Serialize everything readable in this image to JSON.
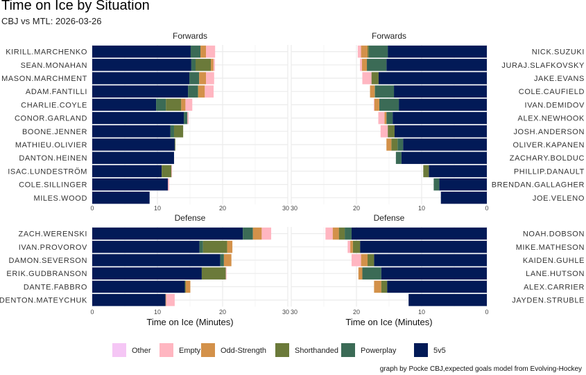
{
  "title": "Time on Ice by Situation",
  "subtitle": "CBJ vs MTL: 2026-03-26",
  "caption": "graph by Pocke CBJ,expected goals model from Evolving-Hockey",
  "chart_data": {
    "type": "bar",
    "orientation": "horizontal-stacked",
    "xlabel": "Time on Ice (Minutes)",
    "xlim": [
      0,
      30
    ],
    "xticks": [
      "0",
      "10",
      "20",
      "30"
    ],
    "series": [
      "5v5",
      "Powerplay",
      "Shorthanded",
      "Odd-Strength",
      "Empty Net",
      "Other"
    ],
    "colors": {
      "5v5": "#021a57",
      "Powerplay": "#3b6b56",
      "Shorthanded": "#6b7a3a",
      "Odd-Strength": "#d3914a",
      "Empty Net": "#ffb6c1",
      "Other": "#f5c6f5"
    },
    "legend": {
      "position": "bottom",
      "order": [
        "Other",
        "Empty Net",
        "Odd-Strength",
        "Shorthanded",
        "Powerplay",
        "5v5"
      ]
    },
    "panels": [
      {
        "title": "Forwards",
        "team": "CBJ",
        "direction": "left-to-right",
        "players": [
          {
            "name": "KIRILL.MARCHENKO",
            "values": [
              15.1,
              1.5,
              0,
              0.85,
              1.4,
              0
            ]
          },
          {
            "name": "SEAN.MONAHAN",
            "values": [
              15.2,
              0.65,
              2.35,
              0.4,
              0.2,
              0
            ]
          },
          {
            "name": "MASON.MARCHMENT",
            "values": [
              14.9,
              1.5,
              0,
              1.05,
              1.25,
              0
            ]
          },
          {
            "name": "ADAM.FANTILLI",
            "values": [
              14.7,
              1.5,
              0.07,
              1.0,
              1.35,
              0
            ]
          },
          {
            "name": "CHARLIE.COYLE",
            "values": [
              9.8,
              1.5,
              2.35,
              0.65,
              1.05,
              0
            ]
          },
          {
            "name": "CONOR.GARLAND",
            "values": [
              14.05,
              0.55,
              0,
              0,
              0.2,
              0
            ]
          },
          {
            "name": "BOONE.JENNER",
            "values": [
              12.0,
              0.55,
              1.4,
              0,
              0,
              0
            ]
          },
          {
            "name": "MATHIEU.OLIVIER",
            "values": [
              12.65,
              0,
              0.1,
              0,
              0,
              0
            ]
          },
          {
            "name": "DANTON.HEINEN",
            "values": [
              12.55,
              0,
              0,
              0,
              0,
              0
            ]
          },
          {
            "name": "ISAC.LUNDESTRÖM",
            "values": [
              10.65,
              0,
              1.5,
              0,
              0.1,
              0
            ]
          },
          {
            "name": "COLE.SILLINGER",
            "values": [
              11.6,
              0,
              0,
              0,
              0.2,
              0
            ]
          },
          {
            "name": "MILES.WOOD",
            "values": [
              8.8,
              0,
              0,
              0,
              0,
              0
            ]
          }
        ]
      },
      {
        "title": "Forwards",
        "team": "MTL",
        "direction": "right-to-left",
        "players": [
          {
            "name": "NICK.SUZUKI",
            "values": [
              15.2,
              2.9,
              0.2,
              1.0,
              0.5,
              0
            ]
          },
          {
            "name": "JURAJ.SLAFKOVSKY",
            "values": [
              15.4,
              3.0,
              0,
              0.75,
              0.3,
              0
            ]
          },
          {
            "name": "JAKE.EVANS",
            "values": [
              16.6,
              0,
              1.1,
              0,
              1.4,
              0
            ]
          },
          {
            "name": "COLE.CAUFIELD",
            "values": [
              14.25,
              2.9,
              0.07,
              0.7,
              0,
              0
            ]
          },
          {
            "name": "IVAN.DEMIDOV",
            "values": [
              13.5,
              3.0,
              0,
              0.75,
              0.1,
              0
            ]
          },
          {
            "name": "ALEX.NEWHOOK",
            "values": [
              14.45,
              0.95,
              0,
              0.3,
              0.95,
              0
            ]
          },
          {
            "name": "JOSH.ANDERSON",
            "values": [
              14.15,
              0,
              1.05,
              0,
              1.1,
              0
            ]
          },
          {
            "name": "OLIVER.KAPANEN",
            "values": [
              12.85,
              0.85,
              0.95,
              0.75,
              0,
              0
            ]
          },
          {
            "name": "ZACHARY.BOLDUC",
            "values": [
              13.1,
              0.85,
              0,
              0,
              0,
              0
            ]
          },
          {
            "name": "PHILLIP.DANAULT",
            "values": [
              8.9,
              0,
              0.85,
              0,
              0,
              0
            ]
          },
          {
            "name": "BRENDAN.GALLAGHER",
            "values": [
              7.3,
              0.85,
              0,
              0,
              0,
              0
            ]
          },
          {
            "name": "JOE.VELENO",
            "values": [
              7.05,
              0,
              0,
              0,
              0,
              0
            ]
          }
        ]
      },
      {
        "title": "Defense",
        "team": "CBJ",
        "direction": "left-to-right",
        "players": [
          {
            "name": "ZACH.WERENSKI",
            "values": [
              23.1,
              1.55,
              0,
              1.35,
              1.45,
              0
            ]
          },
          {
            "name": "IVAN.PROVOROV",
            "values": [
              16.45,
              0.55,
              3.7,
              0.8,
              0,
              0
            ]
          },
          {
            "name": "DAMON.SEVERSON",
            "values": [
              19.65,
              0.55,
              0,
              1.15,
              0,
              0
            ]
          },
          {
            "name": "ERIK.GUDBRANSON",
            "values": [
              16.8,
              0,
              3.7,
              0,
              0.1,
              0
            ]
          },
          {
            "name": "DANTE.FABBRO",
            "values": [
              14.2,
              0,
              0.15,
              0.7,
              0,
              0
            ]
          },
          {
            "name": "DENTON.MATEYCHUK",
            "values": [
              11.25,
              0,
              0,
              0.1,
              1.3,
              0
            ]
          }
        ]
      },
      {
        "title": "Defense",
        "team": "MTL",
        "direction": "right-to-left",
        "players": [
          {
            "name": "NOAH.DOBSON",
            "values": [
              20.75,
              1.05,
              0.9,
              0.95,
              1.1,
              0
            ]
          },
          {
            "name": "MIKE.MATHESON",
            "values": [
              19.45,
              0,
              1.1,
              0.4,
              0.4,
              0
            ]
          },
          {
            "name": "KAIDEN.GUHLE",
            "values": [
              17.3,
              0,
              1.0,
              1.0,
              1.45,
              0
            ]
          },
          {
            "name": "LANE.HUTSON",
            "values": [
              16.2,
              2.9,
              0,
              0.6,
              0,
              0
            ]
          },
          {
            "name": "ALEX.CARRIER",
            "values": [
              15.3,
              0,
              0.9,
              1.1,
              0,
              0
            ]
          },
          {
            "name": "JAYDEN.STRUBLE",
            "values": [
              12.0,
              0,
              0,
              0,
              0,
              0
            ]
          }
        ]
      }
    ]
  }
}
